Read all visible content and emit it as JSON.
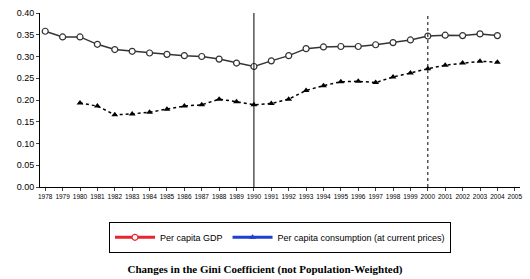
{
  "chart_data": {
    "type": "line",
    "title": "Changes in the Gini Coefficient (not Population-Weighted)",
    "categories": [
      "1978",
      "1979",
      "1980",
      "1981",
      "1982",
      "1983",
      "1984",
      "1985",
      "1986",
      "1987",
      "1988",
      "1989",
      "1990",
      "1991",
      "1992",
      "1993",
      "1994",
      "1995",
      "1996",
      "1997",
      "1998",
      "1999",
      "2000",
      "2001",
      "2002",
      "2003",
      "2004",
      "2005"
    ],
    "series": [
      {
        "name": "Per capita GDP",
        "color": "#333333",
        "marker": "circle-open",
        "line_style": "solid",
        "values": [
          0.358,
          0.345,
          0.345,
          0.328,
          0.316,
          0.312,
          0.308,
          0.305,
          0.302,
          0.3,
          0.294,
          0.285,
          0.277,
          0.29,
          0.302,
          0.318,
          0.322,
          0.323,
          0.323,
          0.327,
          0.332,
          0.338,
          0.347,
          0.349,
          0.348,
          0.352,
          0.348,
          null
        ]
      },
      {
        "name": "Per capita consumption (at current prices)",
        "color": "#000000",
        "marker": "triangle",
        "line_style": "dotted",
        "values": [
          null,
          null,
          0.193,
          0.186,
          0.166,
          0.168,
          0.172,
          0.179,
          0.186,
          0.189,
          0.202,
          0.196,
          0.189,
          0.192,
          0.202,
          0.222,
          0.233,
          0.242,
          0.243,
          0.24,
          0.253,
          0.262,
          0.272,
          0.28,
          0.285,
          0.289,
          0.287,
          null
        ]
      }
    ],
    "ylim": [
      0,
      0.4
    ],
    "yticks": [
      {
        "value": 0,
        "label": "0.00"
      },
      {
        "value": 0.05,
        "label": "0.05"
      },
      {
        "value": 0.1,
        "label": "0.10"
      },
      {
        "value": 0.15,
        "label": "0.15"
      },
      {
        "value": 0.2,
        "label": "0.20"
      },
      {
        "value": 0.25,
        "label": "0.25"
      },
      {
        "value": 0.3,
        "label": "0.30"
      },
      {
        "value": 0.35,
        "label": "0.35"
      },
      {
        "value": 0.4,
        "label": "0.40"
      }
    ],
    "grid": false,
    "legend": "bottom",
    "reference_lines": [
      {
        "x": "1990",
        "line_style": "solid"
      },
      {
        "x": "2000",
        "line_style": "dotted"
      }
    ]
  }
}
